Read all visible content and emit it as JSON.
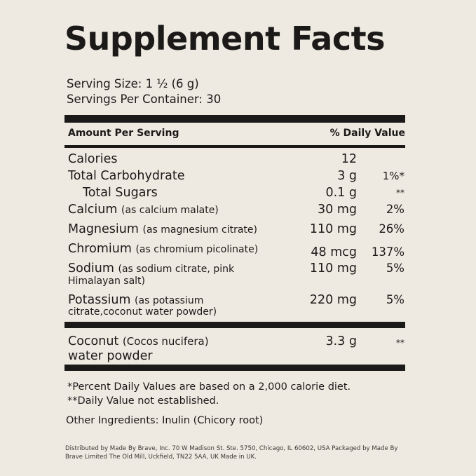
{
  "title": "Supplement Facts",
  "serving_size": "Serving Size: 1 ½ (6 g)",
  "servings_per_container": "Servings Per Container: 30",
  "header": {
    "amount_per_serving": "Amount Per Serving",
    "daily_value": "% Daily Value"
  },
  "rows": [
    {
      "name": "Calories",
      "amount": "12",
      "dv": ""
    },
    {
      "name": "Total Carbohydrate",
      "amount": "3 g",
      "dv": "1%*"
    },
    {
      "name": "Total Sugars",
      "amount": "0.1 g",
      "dv": "**"
    },
    {
      "name": "Calcium",
      "source": "(as calcium malate)",
      "amount": "30 mg",
      "dv": "2%"
    },
    {
      "name": "Magnesium",
      "source": "(as magnesium citrate)",
      "amount": "110 mg",
      "dv": "26%"
    },
    {
      "name": "Chromium",
      "source": "(as chromium picolinate)",
      "amount": "48 mcg",
      "dv": "137%"
    },
    {
      "name": "Sodium",
      "source": "(as sodium citrate, pink",
      "source_line2": "Himalayan salt)",
      "amount": "110 mg",
      "dv": "5%"
    },
    {
      "name": "Potassium",
      "source": "(as potassium",
      "source_line2": "citrate,coconut water powder)",
      "amount": "220 mg",
      "dv": "5%"
    }
  ],
  "coconut": {
    "name": "Coconut",
    "latin": "(Cocos nucifera)",
    "line2": "water powder",
    "amount": "3.3 g",
    "dv": "**"
  },
  "footnotes": {
    "percent_dv": "*Percent Daily Values are based on a 2,000 calorie diet.",
    "not_established": "**Daily Value not established.",
    "other_ingredients": "Other Ingredients: Inulin (Chicory root)"
  },
  "distributed_by": "Distributed by Made By Brave, Inc. 70 W Madison St. Ste. 5750, Chicago, IL 60602, USA Packaged by Made By Brave Limited The Old Mill, Uckfield, TN22 5AA, UK Made in UK."
}
